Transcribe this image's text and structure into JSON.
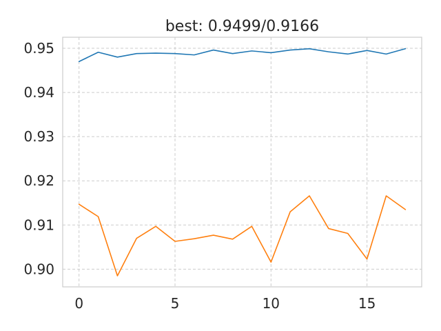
{
  "chart_data": {
    "type": "line",
    "title": "best: 0.9499/0.9166",
    "xlabel": "",
    "ylabel": "",
    "xlim": [
      -0.85,
      17.85
    ],
    "ylim": [
      0.896,
      0.9525
    ],
    "xticks": [
      0,
      5,
      10,
      15
    ],
    "xtick_labels": [
      "0",
      "5",
      "10",
      "15"
    ],
    "yticks": [
      0.9,
      0.91,
      0.92,
      0.93,
      0.94,
      0.95
    ],
    "ytick_labels": [
      "0.90",
      "0.91",
      "0.92",
      "0.93",
      "0.94",
      "0.95"
    ],
    "grid": true,
    "legend": "none",
    "x": [
      0,
      1,
      2,
      3,
      4,
      5,
      6,
      7,
      8,
      9,
      10,
      11,
      12,
      13,
      14,
      15,
      16,
      17
    ],
    "series": [
      {
        "color": "#1f77b4",
        "values": [
          0.947,
          0.9491,
          0.948,
          0.9488,
          0.9489,
          0.9488,
          0.9485,
          0.9496,
          0.9488,
          0.9494,
          0.949,
          0.9496,
          0.9499,
          0.9492,
          0.9487,
          0.9495,
          0.9487,
          0.9499
        ]
      },
      {
        "color": "#ff7f0e",
        "values": [
          0.9147,
          0.9119,
          0.8985,
          0.907,
          0.9097,
          0.9063,
          0.9069,
          0.9077,
          0.9068,
          0.9097,
          0.9016,
          0.913,
          0.9166,
          0.9092,
          0.9081,
          0.9023,
          0.9166,
          0.9135
        ]
      }
    ]
  }
}
